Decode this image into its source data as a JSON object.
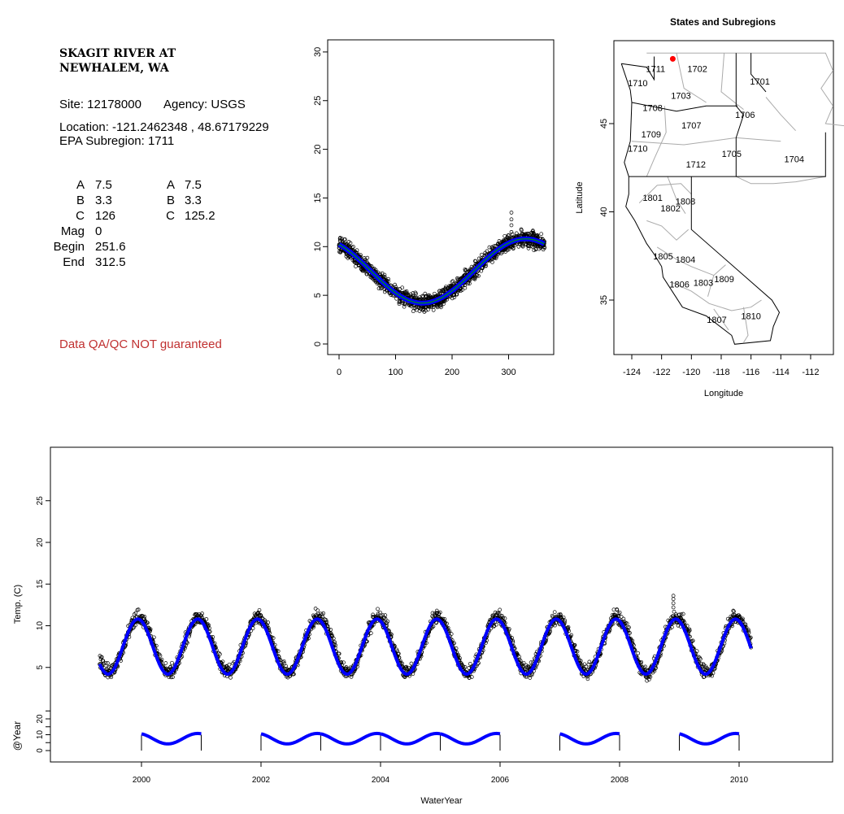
{
  "info": {
    "title_line1": "SKAGIT RIVER AT",
    "title_line2": "NEWHALEM, WA",
    "site": "Site: 12178000",
    "agency": "Agency: USGS",
    "location": "Location: -121.2462348 , 48.67179229",
    "subregion": "EPA Subregion: 1711",
    "params_left": [
      {
        "label": "A",
        "value": "7.5"
      },
      {
        "label": "B",
        "value": "3.3"
      },
      {
        "label": "C",
        "value": "126"
      },
      {
        "label": "Mag",
        "value": "0"
      },
      {
        "label": "Begin",
        "value": "251.6"
      },
      {
        "label": "End",
        "value": "312.5"
      }
    ],
    "params_right": [
      {
        "label": "A",
        "value": "7.5"
      },
      {
        "label": "B",
        "value": "3.3"
      },
      {
        "label": "C",
        "value": "125.2"
      }
    ],
    "disclaimer": "Data QA/QC NOT guaranteed",
    "disclaimer_color": "#c03030"
  },
  "chart_data": [
    {
      "type": "scatter",
      "title": "",
      "xlabel": "",
      "ylabel": "",
      "xlim": [
        0,
        365
      ],
      "ylim": [
        0,
        30
      ],
      "xticks": [
        "0",
        "100",
        "200",
        "300"
      ],
      "yticks": [
        "0",
        "5",
        "10",
        "15",
        "20",
        "25",
        "30"
      ],
      "fit": {
        "mean": 7.5,
        "amplitude": 3.3,
        "peak_day": 330,
        "color": "#0000ff",
        "inner_color": "#00a000"
      },
      "outlier_max": 13.5
    },
    {
      "type": "map",
      "title": "States and Subregions",
      "xlabel": "Longitude",
      "ylabel": "Latitude",
      "xticks": [
        "-124",
        "-122",
        "-120",
        "-118",
        "-116",
        "-114",
        "-112"
      ],
      "yticks": [
        "35",
        "40",
        "45"
      ],
      "site": {
        "lon": -121.25,
        "lat": 48.67,
        "color": "#ff0000"
      },
      "regions": [
        {
          "label": "1711",
          "lon": -122.4,
          "lat": 48.1
        },
        {
          "label": "1702",
          "lon": -119.6,
          "lat": 48.1
        },
        {
          "label": "1701",
          "lon": -115.4,
          "lat": 47.4
        },
        {
          "label": "1710",
          "lon": -123.6,
          "lat": 47.3
        },
        {
          "label": "1703",
          "lon": -120.7,
          "lat": 46.6
        },
        {
          "label": "1708",
          "lon": -122.6,
          "lat": 45.9
        },
        {
          "label": "1706",
          "lon": -116.4,
          "lat": 45.5
        },
        {
          "label": "1707",
          "lon": -120.0,
          "lat": 44.9
        },
        {
          "label": "1709",
          "lon": -122.7,
          "lat": 44.4
        },
        {
          "label": "1710",
          "lon": -123.6,
          "lat": 43.6
        },
        {
          "label": "1705",
          "lon": -117.3,
          "lat": 43.3
        },
        {
          "label": "1704",
          "lon": -113.1,
          "lat": 43.0
        },
        {
          "label": "1712",
          "lon": -119.7,
          "lat": 42.7
        },
        {
          "label": "1801",
          "lon": -122.6,
          "lat": 40.8
        },
        {
          "label": "1808",
          "lon": -120.4,
          "lat": 40.6
        },
        {
          "label": "1802",
          "lon": -121.4,
          "lat": 40.2
        },
        {
          "label": "1805",
          "lon": -121.9,
          "lat": 37.5
        },
        {
          "label": "1804",
          "lon": -120.4,
          "lat": 37.3
        },
        {
          "label": "1809",
          "lon": -117.8,
          "lat": 36.2
        },
        {
          "label": "1806",
          "lon": -120.8,
          "lat": 35.9
        },
        {
          "label": "1803",
          "lon": -119.2,
          "lat": 36.0
        },
        {
          "label": "1810",
          "lon": -116.0,
          "lat": 34.1
        },
        {
          "label": "1807",
          "lon": -118.3,
          "lat": 33.9
        }
      ]
    },
    {
      "type": "line",
      "xlabel": "WaterYear",
      "ylabel": "Temp. (C)",
      "ylabel2": "@Year",
      "xlim": [
        1998.7,
        2011.5
      ],
      "ylim": [
        0,
        30
      ],
      "xticks": [
        "2000",
        "2002",
        "2004",
        "2006",
        "2008",
        "2010"
      ],
      "yticks": [
        "5",
        "10",
        "15",
        "20",
        "25"
      ],
      "yticks2": [
        "0",
        "10",
        "20"
      ],
      "range": [
        1999.3,
        2010.2
      ],
      "fit": {
        "mean": 7.5,
        "amplitude": 3.3,
        "peak_phase": 0.94,
        "color": "#0000ff"
      },
      "annual_fit_years": [
        2000,
        2002,
        2003,
        2004,
        2005,
        2007,
        2009
      ],
      "outlier": {
        "x": 2008.9,
        "values": [
          12.2,
          12.7,
          13.2,
          13.6
        ]
      }
    }
  ]
}
